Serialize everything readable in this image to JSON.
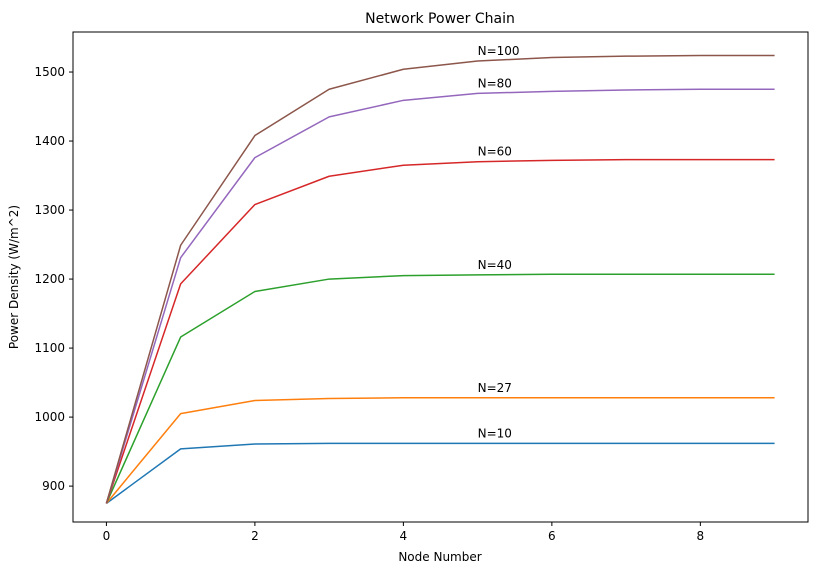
{
  "chart_data": {
    "type": "line",
    "title": "Network Power Chain",
    "xlabel": "Node Number",
    "ylabel": "Power Density (W/m^2)",
    "xlim": [
      -0.45,
      9.45
    ],
    "ylim": [
      848,
      1558
    ],
    "xticks": [
      0,
      2,
      4,
      6,
      8
    ],
    "yticks": [
      900,
      1000,
      1100,
      1200,
      1300,
      1400,
      1500
    ],
    "grid": false,
    "x": [
      0,
      1,
      2,
      3,
      4,
      5,
      6,
      7,
      8,
      9
    ],
    "series": [
      {
        "name": "N=10",
        "color": "#1f77b4",
        "label_x": 5,
        "values": [
          875,
          954,
          961,
          962,
          962,
          962,
          962,
          962,
          962,
          962
        ]
      },
      {
        "name": "N=27",
        "color": "#ff7f0e",
        "label_x": 5,
        "values": [
          875,
          1005,
          1024,
          1027,
          1028,
          1028,
          1028,
          1028,
          1028,
          1028
        ]
      },
      {
        "name": "N=40",
        "color": "#2ca02c",
        "label_x": 5,
        "values": [
          875,
          1116,
          1182,
          1200,
          1205,
          1206,
          1207,
          1207,
          1207,
          1207
        ]
      },
      {
        "name": "N=60",
        "color": "#d62728",
        "label_x": 5,
        "values": [
          875,
          1193,
          1308,
          1349,
          1365,
          1370,
          1372,
          1373,
          1373,
          1373
        ]
      },
      {
        "name": "N=80",
        "color": "#9467bd",
        "label_x": 5,
        "values": [
          875,
          1231,
          1376,
          1435,
          1459,
          1469,
          1472,
          1474,
          1475,
          1475
        ]
      },
      {
        "name": "N=100",
        "color": "#8c564b",
        "label_x": 5,
        "values": [
          875,
          1249,
          1408,
          1475,
          1504,
          1516,
          1521,
          1523,
          1524,
          1524
        ]
      }
    ]
  }
}
